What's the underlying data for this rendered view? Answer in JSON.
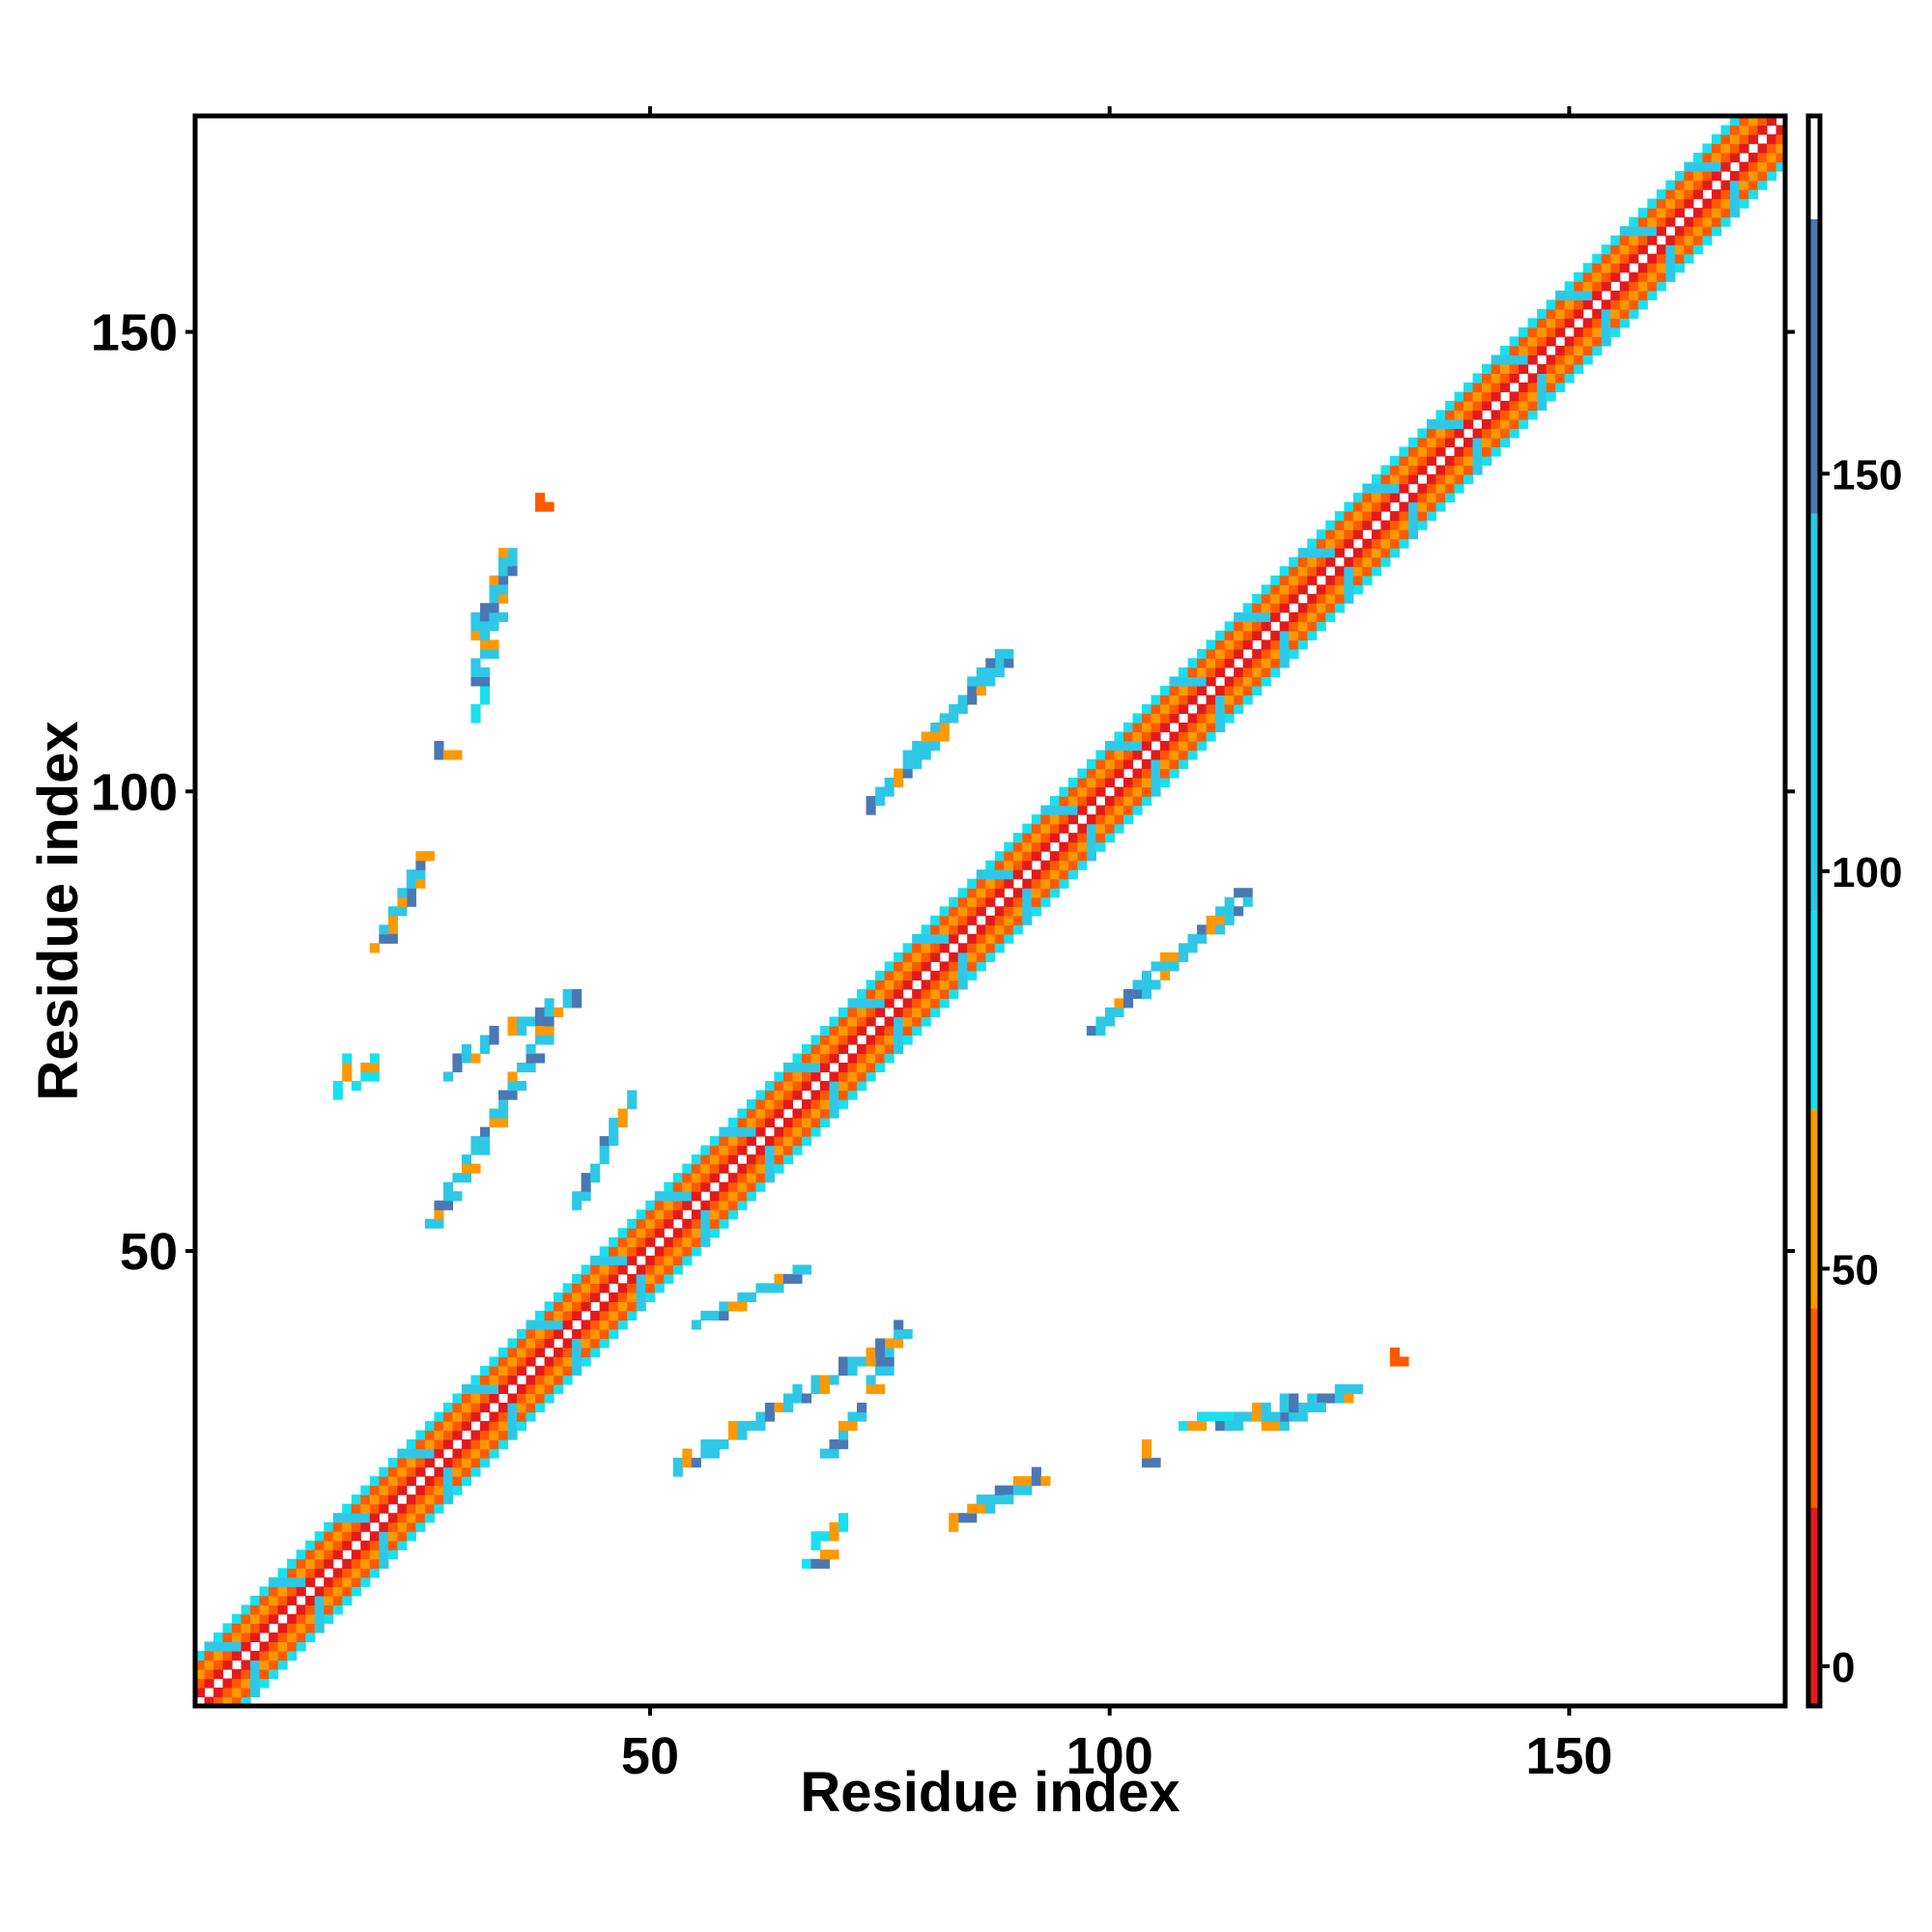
{
  "chart_data": {
    "type": "heatmap",
    "title": "",
    "xlabel": "Residue index",
    "ylabel": "Residue index",
    "xlim": [
      1,
      173
    ],
    "ylim": [
      1,
      173
    ],
    "x_ticks": [
      50,
      100,
      150
    ],
    "y_ticks": [
      50,
      100,
      150
    ],
    "colorbar": {
      "ticks": [
        0,
        50,
        100,
        150
      ],
      "range": [
        -5,
        195
      ],
      "bands": [
        {
          "from": -5,
          "to": 20,
          "color": "#e31a1c"
        },
        {
          "from": 20,
          "to": 45,
          "color": "#ff5a00"
        },
        {
          "from": 45,
          "to": 70,
          "color": "#ff9900"
        },
        {
          "from": 70,
          "to": 95,
          "color": "#19e0f0"
        },
        {
          "from": 95,
          "to": 145,
          "color": "#2ec8e6"
        },
        {
          "from": 145,
          "to": 182,
          "color": "#4a78b4"
        },
        {
          "from": 182,
          "to": 195,
          "color": "#ffffff"
        }
      ]
    },
    "diagonal_band": {
      "description_values": [
        {
          "offset": 1,
          "value": 0
        },
        {
          "offset": 2,
          "value": 30
        },
        {
          "offset": 3,
          "value": 55
        },
        {
          "offset": 4,
          "value": 30
        },
        {
          "offset": 5,
          "value": 90
        }
      ]
    },
    "contact_clusters": [
      {
        "x": [
          67,
          70
        ],
        "y": [
          16,
          17
        ],
        "value": 90
      },
      {
        "x": [
          84,
          90
        ],
        "y": [
          21,
          25
        ],
        "value": 100
      },
      {
        "x": [
          74,
          77
        ],
        "y": [
          35,
          42
        ],
        "value": 110
      },
      {
        "x": [
          55,
          66
        ],
        "y": [
          42,
          48
        ],
        "value": 95
      },
      {
        "x": [
          69,
          73
        ],
        "y": [
          28,
          33
        ],
        "value": 100
      },
      {
        "x": [
          104,
          104
        ],
        "y": [
          27,
          27
        ],
        "value": 50
      },
      {
        "x": [
          108,
          112
        ],
        "y": [
          31,
          32
        ],
        "value": 90
      },
      {
        "x": [
          117,
          126
        ],
        "y": [
          31,
          35
        ],
        "value": 105
      },
      {
        "x": [
          131,
          131
        ],
        "y": [
          38,
          38
        ],
        "value": 30
      },
      {
        "x": [
          98,
          114
        ],
        "y": [
          74,
          89
        ],
        "value": 100
      },
      {
        "x": [
          74,
          88
        ],
        "y": [
          99,
          115
        ],
        "value": 105
      },
      {
        "x": [
          26,
          39
        ],
        "y": [
          53,
          75
        ],
        "value": 100
      },
      {
        "x": [
          20,
          25
        ],
        "y": [
          83,
          93
        ],
        "value": 95
      },
      {
        "x": [
          31,
          34
        ],
        "y": [
          112,
          126
        ],
        "value": 100
      },
      {
        "x": [
          38,
          38
        ],
        "y": [
          131,
          131
        ],
        "value": 30
      },
      {
        "x": [
          18,
          20
        ],
        "y": [
          68,
          71
        ],
        "value": 90
      },
      {
        "x": [
          27,
          28
        ],
        "y": [
          104,
          104
        ],
        "value": 55
      }
    ]
  }
}
